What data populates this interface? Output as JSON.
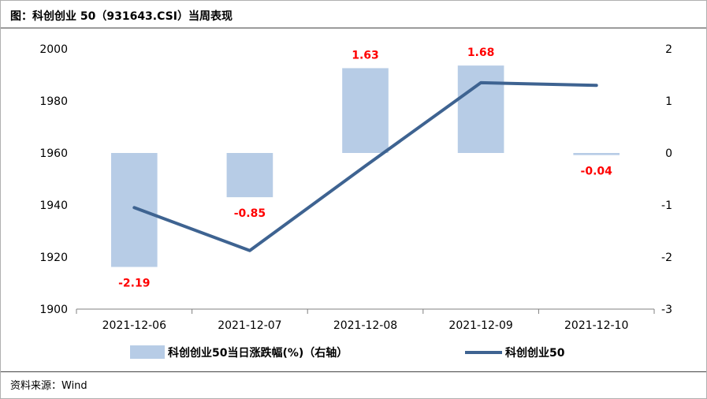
{
  "title": "图：科创创业 50（931643.CSI）当周表现",
  "source": "资料来源：Wind",
  "colors": {
    "bar": "#b7cce6",
    "line": "#3e6391",
    "label_red": "#ff0000",
    "axis": "#808080"
  },
  "chart_data": {
    "type": "bar+line",
    "categories": [
      "2021-12-06",
      "2021-12-07",
      "2021-12-08",
      "2021-12-09",
      "2021-12-10"
    ],
    "series": [
      {
        "name": "科创创业50当日涨跌幅(%)（右轴）",
        "type": "bar",
        "axis": "right",
        "values": [
          -2.19,
          -0.85,
          1.63,
          1.68,
          -0.04
        ],
        "labels": [
          "-2.19",
          "-0.85",
          "1.63",
          "1.68",
          "-0.04"
        ]
      },
      {
        "name": "科创创业50",
        "type": "line",
        "axis": "left",
        "values": [
          1939,
          1922.5,
          1955,
          1987,
          1986
        ]
      }
    ],
    "y_left": {
      "min": 1900,
      "max": 2000,
      "ticks": [
        "1900",
        "1920",
        "1940",
        "1960",
        "1980",
        "2000"
      ]
    },
    "y_right": {
      "min": -3,
      "max": 2,
      "ticks": [
        "-3",
        "-2",
        "-1",
        "0",
        "1",
        "2"
      ]
    },
    "grid": false,
    "legend_position": "bottom"
  }
}
